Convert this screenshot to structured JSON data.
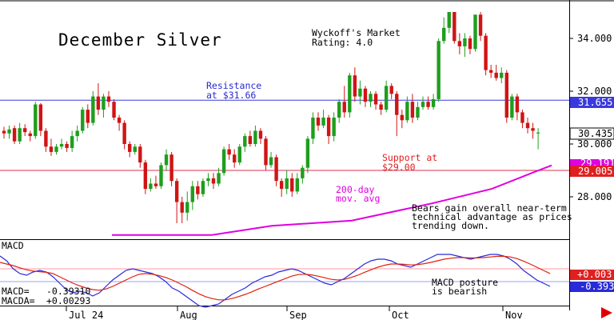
{
  "colors": {
    "up": "#1e9e1e",
    "down": "#d01414",
    "resistance": "#3a3adc",
    "support": "#d83050",
    "ma": "#e000e0",
    "macd": "#2a2ad8",
    "signal": "#e02010",
    "text_blue": "#2a2ad0",
    "text_red": "#e02020",
    "arrow": "#e00000"
  },
  "icons": {
    "scroll": "red-right-arrow-icon"
  },
  "text": {
    "title": "December Silver",
    "rating_line1": "Wyckoff's Market",
    "rating_line2": "Rating: 4.0",
    "resistance_line1": "Resistance",
    "resistance_line2": "at $31.66",
    "support_line1": "Support at",
    "support_line2": "$29.00",
    "ma_line1": "200-day",
    "ma_line2": "mov. avg",
    "bears_line1": "Bears gain overall near-term",
    "bears_line2": "technical advantage as prices",
    "bears_line3": "trending down.",
    "macd_title": "MACD",
    "macd_posture_line1": "MACD posture",
    "macd_posture_line2": "is bearish",
    "macd_label": "MACD=",
    "macd_value": "-0.39310",
    "macda_label": "MACDA=",
    "macda_value": "+0.00293"
  },
  "tags": {
    "last_price": "30.435",
    "resistance": "31.655",
    "support": "29.005",
    "ma": "29.191",
    "macd_signal": "+0.003",
    "macd_line": "-0.393"
  },
  "chart_data": {
    "type": "candlestick",
    "price_axis": {
      "ticks": [
        "34.000",
        "32.000",
        "30.000",
        "28.000"
      ]
    },
    "x_labels": [
      "Jul 24",
      "Aug",
      "Sep",
      "Oct",
      "Nov"
    ],
    "levels": {
      "resistance": 31.66,
      "support": 29.0
    },
    "candles": [
      [
        30.5,
        30.4,
        30.65,
        30.2
      ],
      [
        30.4,
        30.55,
        30.7,
        30.2
      ],
      [
        30.6,
        30.1,
        30.7,
        30.0
      ],
      [
        30.1,
        30.6,
        30.8,
        30.0
      ],
      [
        30.6,
        30.45,
        30.75,
        30.3
      ],
      [
        30.4,
        30.3,
        30.5,
        30.1
      ],
      [
        30.3,
        31.5,
        31.6,
        30.2
      ],
      [
        31.5,
        30.5,
        31.55,
        30.3
      ],
      [
        30.5,
        29.9,
        30.6,
        29.7
      ],
      [
        29.9,
        29.7,
        30.2,
        29.55
      ],
      [
        29.7,
        29.9,
        30.0,
        29.6
      ],
      [
        29.9,
        30.0,
        30.2,
        29.8
      ],
      [
        30.0,
        29.85,
        30.1,
        29.7
      ],
      [
        29.85,
        30.3,
        30.5,
        29.7
      ],
      [
        30.3,
        30.5,
        30.7,
        30.1
      ],
      [
        30.5,
        31.3,
        31.4,
        30.4
      ],
      [
        31.3,
        30.8,
        31.5,
        30.6
      ],
      [
        30.8,
        31.8,
        32.0,
        30.7
      ],
      [
        31.8,
        31.3,
        32.3,
        31.1
      ],
      [
        31.3,
        31.8,
        31.9,
        31.0
      ],
      [
        31.8,
        31.6,
        32.0,
        31.4
      ],
      [
        31.6,
        31.0,
        31.7,
        30.9
      ],
      [
        31.0,
        30.8,
        31.1,
        30.5
      ],
      [
        30.8,
        30.0,
        30.9,
        29.8
      ],
      [
        30.0,
        29.7,
        30.1,
        29.5
      ],
      [
        29.7,
        29.9,
        30.0,
        29.6
      ],
      [
        29.9,
        29.3,
        30.0,
        29.1
      ],
      [
        29.3,
        28.3,
        29.4,
        28.1
      ],
      [
        28.3,
        28.5,
        28.7,
        28.2
      ],
      [
        28.5,
        28.4,
        28.8,
        28.3
      ],
      [
        28.4,
        29.2,
        29.3,
        28.3
      ],
      [
        29.2,
        29.6,
        29.8,
        29.0
      ],
      [
        29.6,
        28.6,
        29.7,
        28.4
      ],
      [
        28.6,
        27.8,
        28.7,
        27.0
      ],
      [
        27.8,
        27.4,
        28.0,
        27.0
      ],
      [
        27.4,
        27.8,
        28.2,
        27.1
      ],
      [
        27.8,
        28.4,
        28.6,
        27.5
      ],
      [
        28.4,
        28.1,
        28.6,
        27.9
      ],
      [
        28.1,
        28.6,
        28.7,
        28.0
      ],
      [
        28.6,
        28.7,
        28.9,
        28.4
      ],
      [
        28.7,
        28.5,
        28.9,
        28.3
      ],
      [
        28.5,
        28.9,
        29.1,
        28.4
      ],
      [
        28.9,
        29.8,
        29.9,
        28.8
      ],
      [
        29.8,
        29.6,
        30.0,
        29.4
      ],
      [
        29.6,
        29.3,
        29.8,
        29.1
      ],
      [
        29.3,
        29.9,
        30.0,
        29.2
      ],
      [
        29.9,
        30.3,
        30.4,
        29.7
      ],
      [
        30.3,
        30.0,
        30.5,
        29.9
      ],
      [
        30.0,
        30.5,
        30.7,
        29.9
      ],
      [
        30.5,
        30.2,
        30.6,
        30.0
      ],
      [
        30.2,
        29.2,
        30.3,
        29.0
      ],
      [
        29.2,
        29.5,
        29.7,
        29.1
      ],
      [
        29.5,
        28.6,
        29.6,
        28.4
      ],
      [
        28.6,
        28.3,
        28.7,
        28.0
      ],
      [
        28.3,
        28.7,
        29.0,
        28.1
      ],
      [
        28.7,
        28.2,
        28.9,
        28.0
      ],
      [
        28.2,
        28.7,
        28.9,
        28.1
      ],
      [
        28.7,
        29.1,
        29.2,
        28.5
      ],
      [
        29.1,
        30.2,
        30.3,
        28.9
      ],
      [
        30.2,
        31.0,
        31.2,
        30.0
      ],
      [
        31.0,
        30.7,
        31.2,
        30.5
      ],
      [
        30.7,
        31.0,
        31.3,
        30.6
      ],
      [
        31.0,
        30.3,
        31.1,
        30.0
      ],
      [
        30.3,
        31.0,
        31.2,
        30.1
      ],
      [
        31.0,
        31.6,
        31.7,
        30.8
      ],
      [
        31.6,
        31.2,
        32.2,
        31.0
      ],
      [
        31.2,
        32.6,
        32.7,
        31.0
      ],
      [
        32.6,
        31.8,
        32.9,
        31.6
      ],
      [
        31.8,
        32.1,
        32.4,
        31.5
      ],
      [
        32.1,
        31.6,
        32.2,
        31.4
      ],
      [
        31.6,
        31.9,
        32.0,
        31.4
      ],
      [
        31.9,
        31.5,
        32.0,
        31.3
      ],
      [
        31.5,
        31.3,
        31.6,
        31.1
      ],
      [
        31.3,
        32.2,
        32.4,
        31.2
      ],
      [
        32.2,
        31.9,
        32.3,
        31.7
      ],
      [
        31.9,
        31.1,
        32.0,
        30.3
      ],
      [
        31.1,
        30.9,
        31.3,
        30.6
      ],
      [
        30.9,
        31.6,
        31.8,
        30.8
      ],
      [
        31.6,
        31.0,
        31.9,
        30.8
      ],
      [
        31.0,
        31.4,
        31.6,
        30.9
      ],
      [
        31.4,
        31.6,
        31.8,
        31.3
      ],
      [
        31.6,
        31.4,
        31.8,
        31.3
      ],
      [
        31.4,
        31.7,
        31.9,
        31.3
      ],
      [
        31.7,
        33.9,
        34.0,
        31.6
      ],
      [
        33.9,
        34.4,
        34.8,
        33.8
      ],
      [
        34.4,
        35.0,
        35.0,
        34.2
      ],
      [
        35.0,
        33.9,
        35.0,
        33.8
      ],
      [
        33.9,
        33.7,
        34.2,
        33.4
      ],
      [
        33.7,
        34.0,
        34.2,
        33.3
      ],
      [
        34.0,
        33.6,
        34.1,
        33.4
      ],
      [
        33.6,
        34.9,
        34.9,
        33.5
      ],
      [
        34.9,
        34.1,
        35.0,
        33.9
      ],
      [
        34.1,
        32.8,
        34.2,
        32.6
      ],
      [
        32.8,
        32.7,
        33.0,
        32.5
      ],
      [
        32.7,
        32.5,
        33.0,
        32.4
      ],
      [
        32.5,
        32.7,
        32.9,
        32.3
      ],
      [
        32.7,
        31.0,
        32.8,
        30.8
      ],
      [
        31.0,
        31.8,
        31.9,
        30.9
      ],
      [
        31.8,
        31.2,
        31.9,
        30.9
      ],
      [
        31.2,
        30.8,
        31.3,
        30.6
      ],
      [
        30.8,
        30.6,
        31.0,
        30.4
      ],
      [
        30.6,
        30.5,
        30.8,
        30.2
      ],
      [
        30.4,
        30.435,
        30.6,
        29.8
      ]
    ],
    "ma_points": [
      [
        0,
        26.55
      ],
      [
        25,
        26.55
      ],
      [
        40,
        26.9
      ],
      [
        60,
        27.1
      ],
      [
        80,
        27.75
      ],
      [
        95,
        28.3
      ],
      [
        105,
        28.9
      ],
      [
        110,
        29.19
      ]
    ],
    "macd": {
      "macd_line": [
        0.55,
        0.4,
        0.15,
        0.0,
        -0.05,
        0.05,
        0.1,
        0.05,
        -0.1,
        -0.3,
        -0.5,
        -0.6,
        -0.55,
        -0.6,
        -0.7,
        -0.6,
        -0.4,
        -0.2,
        -0.05,
        0.1,
        0.15,
        0.1,
        0.05,
        0.0,
        -0.1,
        -0.25,
        -0.45,
        -0.55,
        -0.7,
        -0.85,
        -1.0,
        -1.05,
        -1.0,
        -0.95,
        -0.8,
        -0.65,
        -0.55,
        -0.45,
        -0.3,
        -0.2,
        -0.1,
        -0.05,
        0.05,
        0.1,
        0.15,
        0.1,
        0.0,
        -0.1,
        -0.2,
        -0.3,
        -0.35,
        -0.25,
        -0.15,
        0.0,
        0.15,
        0.3,
        0.4,
        0.45,
        0.45,
        0.4,
        0.3,
        0.25,
        0.2,
        0.3,
        0.4,
        0.5,
        0.6,
        0.6,
        0.6,
        0.55,
        0.5,
        0.45,
        0.5,
        0.55,
        0.6,
        0.6,
        0.55,
        0.45,
        0.3,
        0.1,
        -0.05,
        -0.2,
        -0.3,
        -0.4
      ],
      "signal_line": [
        0.35,
        0.3,
        0.25,
        0.18,
        0.12,
        0.08,
        0.06,
        0.04,
        0.0,
        -0.1,
        -0.2,
        -0.3,
        -0.38,
        -0.45,
        -0.5,
        -0.52,
        -0.48,
        -0.4,
        -0.3,
        -0.2,
        -0.1,
        -0.02,
        0.0,
        -0.02,
        -0.06,
        -0.12,
        -0.2,
        -0.3,
        -0.4,
        -0.52,
        -0.63,
        -0.72,
        -0.78,
        -0.82,
        -0.82,
        -0.78,
        -0.72,
        -0.65,
        -0.57,
        -0.48,
        -0.4,
        -0.32,
        -0.24,
        -0.16,
        -0.08,
        -0.03,
        -0.02,
        -0.04,
        -0.08,
        -0.13,
        -0.18,
        -0.2,
        -0.18,
        -0.12,
        -0.05,
        0.04,
        0.12,
        0.2,
        0.26,
        0.3,
        0.3,
        0.29,
        0.27,
        0.28,
        0.31,
        0.35,
        0.4,
        0.45,
        0.48,
        0.5,
        0.5,
        0.49,
        0.49,
        0.5,
        0.52,
        0.54,
        0.54,
        0.52,
        0.47,
        0.39,
        0.3,
        0.2,
        0.1,
        0.003
      ]
    }
  }
}
